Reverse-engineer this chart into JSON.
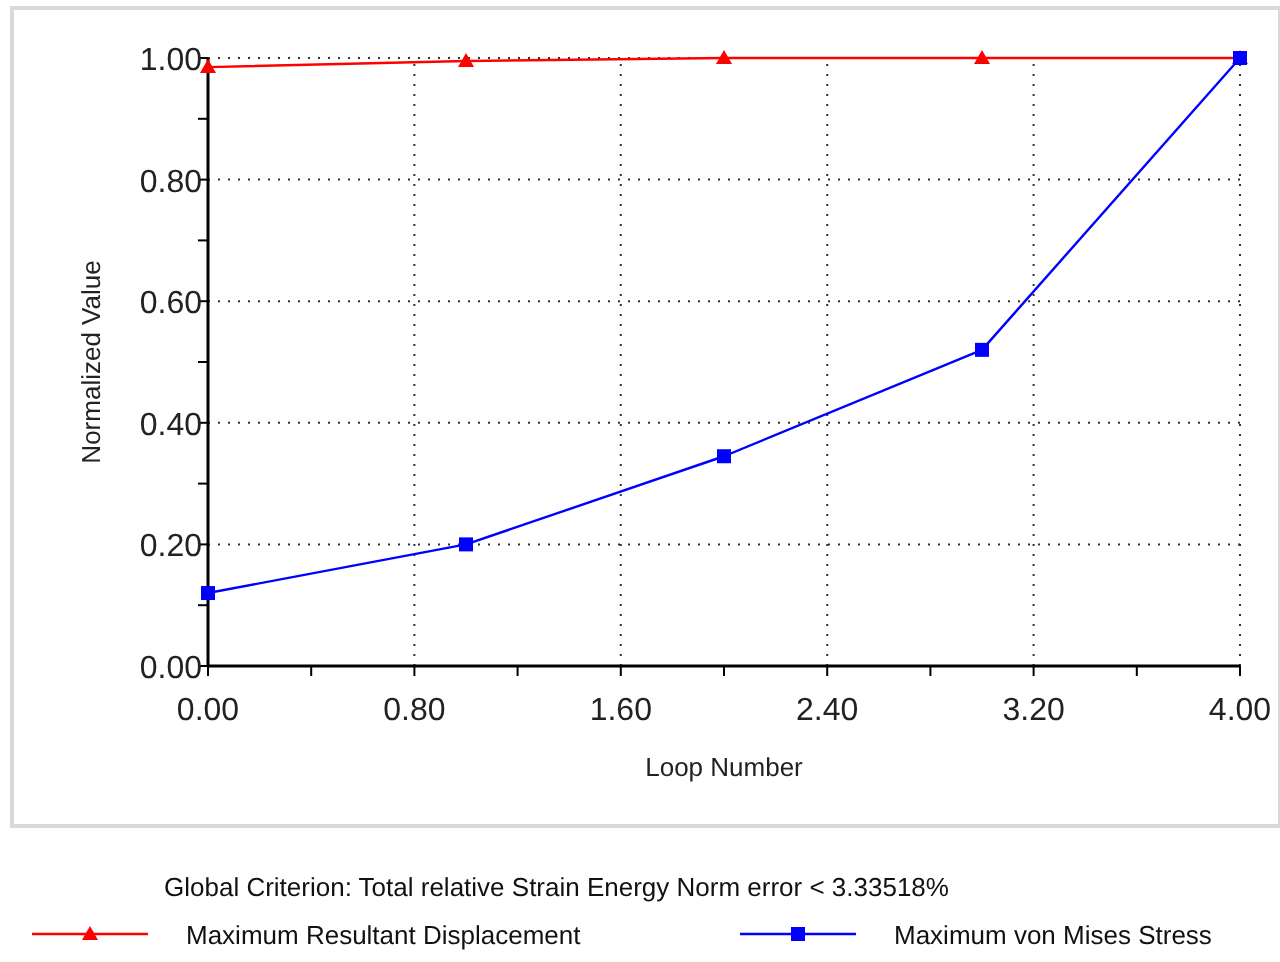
{
  "chart_data": {
    "type": "line",
    "xlabel": "Loop Number",
    "ylabel": "Normalized Value",
    "x": [
      0,
      1,
      2,
      3,
      4
    ],
    "series": [
      {
        "name": "Maximum Resultant Displacement",
        "color": "#ff0000",
        "marker": "triangle",
        "values": [
          0.985,
          0.995,
          1.0,
          1.0,
          1.0
        ]
      },
      {
        "name": "Maximum von Mises Stress",
        "color": "#0000ff",
        "marker": "square",
        "values": [
          0.12,
          0.2,
          0.345,
          0.52,
          1.0
        ]
      }
    ],
    "xlim": [
      0,
      4
    ],
    "xticks": [
      {
        "value": 0,
        "label": "0.00"
      },
      {
        "value": 0.4,
        "label": null
      },
      {
        "value": 0.8,
        "label": "0.80"
      },
      {
        "value": 1.2,
        "label": null
      },
      {
        "value": 1.6,
        "label": "1.60"
      },
      {
        "value": 2.0,
        "label": null
      },
      {
        "value": 2.4,
        "label": "2.40"
      },
      {
        "value": 2.8,
        "label": null
      },
      {
        "value": 3.2,
        "label": "3.20"
      },
      {
        "value": 3.6,
        "label": null
      },
      {
        "value": 4,
        "label": "4.00"
      }
    ],
    "ylim": [
      0,
      1
    ],
    "yticks": [
      {
        "value": 0,
        "label": "0.00"
      },
      {
        "value": 0.1,
        "label": null
      },
      {
        "value": 0.2,
        "label": "0.20"
      },
      {
        "value": 0.3,
        "label": null
      },
      {
        "value": 0.4,
        "label": "0.40"
      },
      {
        "value": 0.5,
        "label": null
      },
      {
        "value": 0.6,
        "label": "0.60"
      },
      {
        "value": 0.7,
        "label": null
      },
      {
        "value": 0.8,
        "label": "0.80"
      },
      {
        "value": 0.9,
        "label": null
      },
      {
        "value": 1,
        "label": "1.00"
      }
    ],
    "grid": true,
    "legend": "bottom",
    "line_style": "solid",
    "annotations": [
      "Global Criterion: Total relative Strain Energy Norm error < 3.33518%"
    ]
  }
}
